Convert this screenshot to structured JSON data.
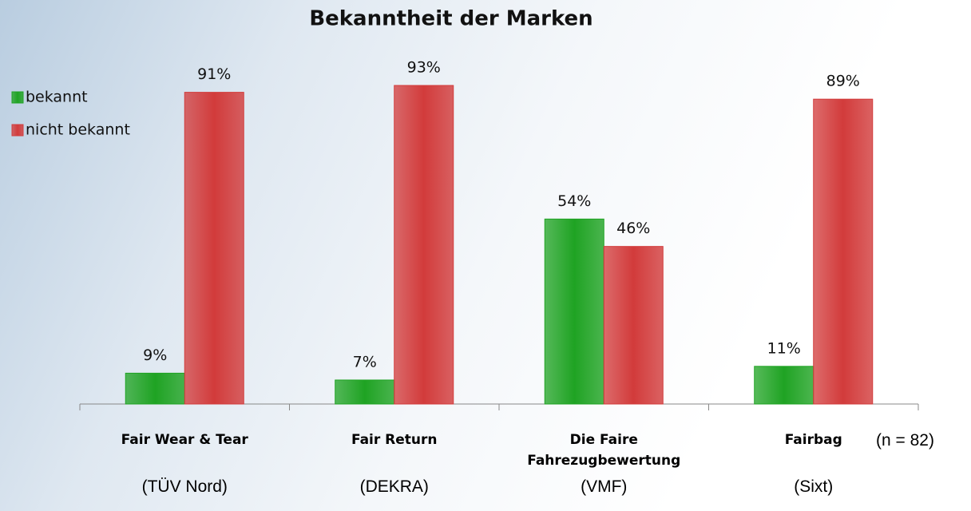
{
  "chart_data": {
    "type": "bar",
    "title": "Bekanntheit der Marken",
    "categories": [
      "Fair Wear & Tear",
      "Fair Return",
      "Die Faire Fahrezugbewertung",
      "Fairbag"
    ],
    "subcategories": [
      "(TÜV Nord)",
      "(DEKRA)",
      "(VMF)",
      "(Sixt)"
    ],
    "note": "(n = 82)",
    "series": [
      {
        "name": "bekannt",
        "color": "#1fa323",
        "values": [
          9,
          7,
          54,
          11
        ],
        "value_labels": [
          "9%",
          "7%",
          "54%",
          "11%"
        ]
      },
      {
        "name": "nicht bekannt",
        "color": "#d23b3b",
        "values": [
          91,
          93,
          46,
          89
        ],
        "value_labels": [
          "91%",
          "93%",
          "46%",
          "89%"
        ]
      }
    ],
    "ylim": [
      0,
      100
    ],
    "legend": "top-left"
  }
}
